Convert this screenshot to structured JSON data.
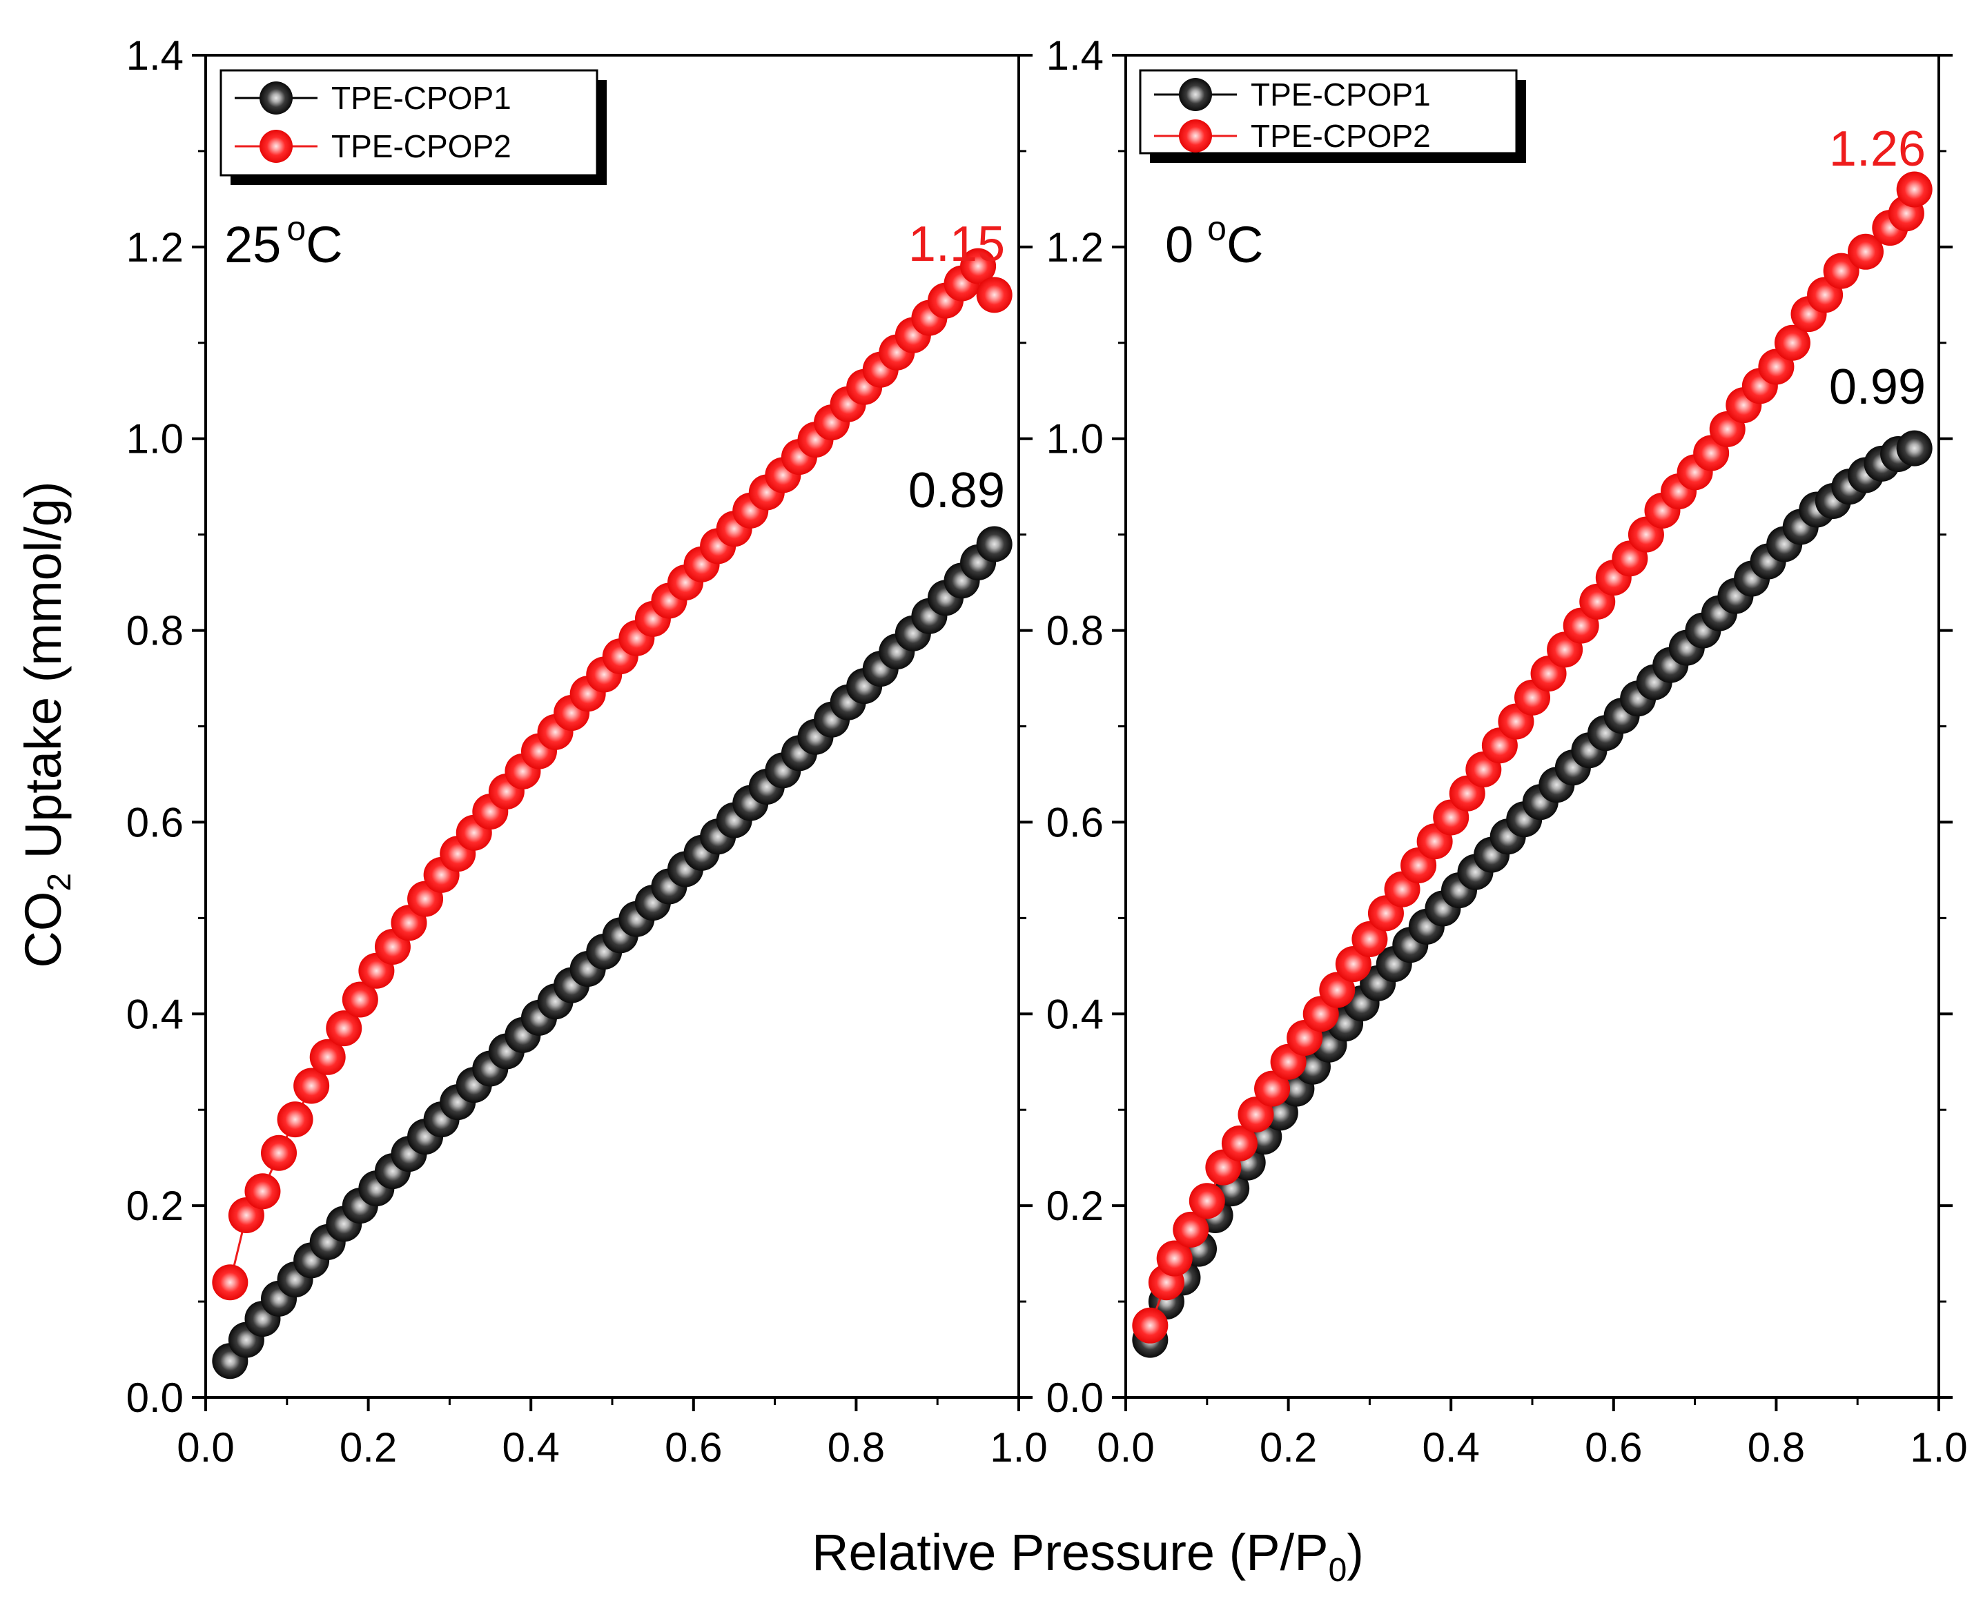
{
  "chart_data": [
    {
      "type": "scatter",
      "panel": "left",
      "temperature_value": "25",
      "temperature_degree": "o",
      "temperature_unit": "C",
      "xlabel": "Relative Pressure (P/P0)",
      "ylabel": "CO2 Uptake (mmol/g)",
      "xlim": [
        0.0,
        1.0
      ],
      "ylim": [
        0.0,
        1.4
      ],
      "x_ticks": [
        "0.0",
        "0.2",
        "0.4",
        "0.6",
        "0.8",
        "1.0"
      ],
      "y_ticks": [
        "0.0",
        "0.2",
        "0.4",
        "0.6",
        "0.8",
        "1.0",
        "1.2",
        "1.4"
      ],
      "legend": [
        "TPE-CPOP1",
        "TPE-CPOP2"
      ],
      "annotations": [
        {
          "text": "1.15",
          "series": "TPE-CPOP2"
        },
        {
          "text": "0.89",
          "series": "TPE-CPOP1"
        }
      ],
      "series": [
        {
          "name": "TPE-CPOP1",
          "color": "#1a1a1a",
          "x": [
            0.03,
            0.05,
            0.07,
            0.09,
            0.11,
            0.13,
            0.15,
            0.17,
            0.19,
            0.21,
            0.23,
            0.25,
            0.27,
            0.29,
            0.31,
            0.33,
            0.35,
            0.37,
            0.39,
            0.41,
            0.43,
            0.45,
            0.47,
            0.49,
            0.51,
            0.53,
            0.55,
            0.57,
            0.59,
            0.61,
            0.63,
            0.65,
            0.67,
            0.69,
            0.71,
            0.73,
            0.75,
            0.77,
            0.79,
            0.81,
            0.83,
            0.85,
            0.87,
            0.89,
            0.91,
            0.93,
            0.95,
            0.97
          ],
          "y": [
            0.038,
            0.06,
            0.082,
            0.103,
            0.123,
            0.143,
            0.162,
            0.181,
            0.2,
            0.218,
            0.236,
            0.254,
            0.272,
            0.29,
            0.308,
            0.326,
            0.343,
            0.361,
            0.378,
            0.396,
            0.413,
            0.43,
            0.447,
            0.465,
            0.482,
            0.499,
            0.516,
            0.533,
            0.551,
            0.568,
            0.585,
            0.602,
            0.62,
            0.637,
            0.654,
            0.672,
            0.689,
            0.707,
            0.725,
            0.742,
            0.76,
            0.778,
            0.797,
            0.815,
            0.834,
            0.852,
            0.871,
            0.89
          ]
        },
        {
          "name": "TPE-CPOP2",
          "color": "#ee1c1c",
          "x": [
            0.03,
            0.05,
            0.07,
            0.09,
            0.11,
            0.13,
            0.15,
            0.17,
            0.19,
            0.21,
            0.23,
            0.25,
            0.27,
            0.29,
            0.31,
            0.33,
            0.35,
            0.37,
            0.39,
            0.41,
            0.43,
            0.45,
            0.47,
            0.49,
            0.51,
            0.53,
            0.55,
            0.57,
            0.59,
            0.61,
            0.63,
            0.65,
            0.67,
            0.69,
            0.71,
            0.73,
            0.75,
            0.77,
            0.79,
            0.81,
            0.83,
            0.85,
            0.87,
            0.89,
            0.91,
            0.93,
            0.95,
            0.97
          ],
          "y": [
            0.12,
            0.19,
            0.215,
            0.255,
            0.29,
            0.325,
            0.355,
            0.385,
            0.415,
            0.445,
            0.47,
            0.495,
            0.52,
            0.545,
            0.567,
            0.589,
            0.611,
            0.632,
            0.653,
            0.674,
            0.694,
            0.714,
            0.734,
            0.754,
            0.773,
            0.792,
            0.812,
            0.831,
            0.85,
            0.869,
            0.888,
            0.906,
            0.925,
            0.944,
            0.962,
            0.981,
            0.999,
            1.017,
            1.036,
            1.054,
            1.072,
            1.09,
            1.108,
            1.126,
            1.144,
            1.162,
            1.18,
            1.15
          ]
        }
      ]
    },
    {
      "type": "scatter",
      "panel": "right",
      "temperature_value": "0",
      "temperature_degree": "o",
      "temperature_unit": "C",
      "xlabel": "Relative Pressure (P/P0)",
      "ylabel": "CO2 Uptake (mmol/g)",
      "xlim": [
        0.0,
        1.0
      ],
      "ylim": [
        0.0,
        1.4
      ],
      "x_ticks": [
        "0.0",
        "0.2",
        "0.4",
        "0.6",
        "0.8",
        "1.0"
      ],
      "y_ticks": [
        "0.0",
        "0.2",
        "0.4",
        "0.6",
        "0.8",
        "1.0",
        "1.2",
        "1.4"
      ],
      "legend": [
        "TPE-CPOP1",
        "TPE-CPOP2"
      ],
      "annotations": [
        {
          "text": "1.26",
          "series": "TPE-CPOP2"
        },
        {
          "text": "0.99",
          "series": "TPE-CPOP1"
        }
      ],
      "series": [
        {
          "name": "TPE-CPOP1",
          "color": "#1a1a1a",
          "x": [
            0.03,
            0.05,
            0.07,
            0.09,
            0.11,
            0.13,
            0.15,
            0.17,
            0.19,
            0.21,
            0.23,
            0.25,
            0.27,
            0.29,
            0.31,
            0.33,
            0.35,
            0.37,
            0.39,
            0.41,
            0.43,
            0.45,
            0.47,
            0.49,
            0.51,
            0.53,
            0.55,
            0.57,
            0.59,
            0.61,
            0.63,
            0.65,
            0.67,
            0.69,
            0.71,
            0.73,
            0.75,
            0.77,
            0.79,
            0.81,
            0.83,
            0.85,
            0.87,
            0.89,
            0.91,
            0.93,
            0.95,
            0.97
          ],
          "y": [
            0.06,
            0.1,
            0.125,
            0.155,
            0.19,
            0.218,
            0.245,
            0.272,
            0.297,
            0.322,
            0.345,
            0.368,
            0.39,
            0.411,
            0.432,
            0.452,
            0.472,
            0.491,
            0.51,
            0.529,
            0.548,
            0.566,
            0.585,
            0.603,
            0.621,
            0.639,
            0.657,
            0.675,
            0.693,
            0.711,
            0.729,
            0.746,
            0.764,
            0.782,
            0.8,
            0.818,
            0.836,
            0.854,
            0.872,
            0.89,
            0.908,
            0.926,
            0.935,
            0.95,
            0.962,
            0.974,
            0.984,
            0.99
          ]
        },
        {
          "name": "TPE-CPOP2",
          "color": "#ee1c1c",
          "x": [
            0.03,
            0.05,
            0.06,
            0.08,
            0.1,
            0.12,
            0.14,
            0.16,
            0.18,
            0.2,
            0.22,
            0.24,
            0.26,
            0.28,
            0.3,
            0.32,
            0.34,
            0.36,
            0.38,
            0.4,
            0.42,
            0.44,
            0.46,
            0.48,
            0.5,
            0.52,
            0.54,
            0.56,
            0.58,
            0.6,
            0.62,
            0.64,
            0.66,
            0.68,
            0.7,
            0.72,
            0.74,
            0.76,
            0.78,
            0.8,
            0.82,
            0.84,
            0.86,
            0.88,
            0.91,
            0.94,
            0.96,
            0.97
          ],
          "y": [
            0.075,
            0.12,
            0.145,
            0.175,
            0.205,
            0.24,
            0.265,
            0.295,
            0.322,
            0.35,
            0.375,
            0.4,
            0.425,
            0.452,
            0.478,
            0.505,
            0.53,
            0.555,
            0.58,
            0.605,
            0.63,
            0.655,
            0.68,
            0.705,
            0.73,
            0.755,
            0.78,
            0.805,
            0.83,
            0.855,
            0.875,
            0.9,
            0.925,
            0.945,
            0.965,
            0.985,
            1.01,
            1.035,
            1.055,
            1.075,
            1.1,
            1.13,
            1.15,
            1.175,
            1.195,
            1.22,
            1.235,
            1.26
          ]
        }
      ]
    }
  ]
}
